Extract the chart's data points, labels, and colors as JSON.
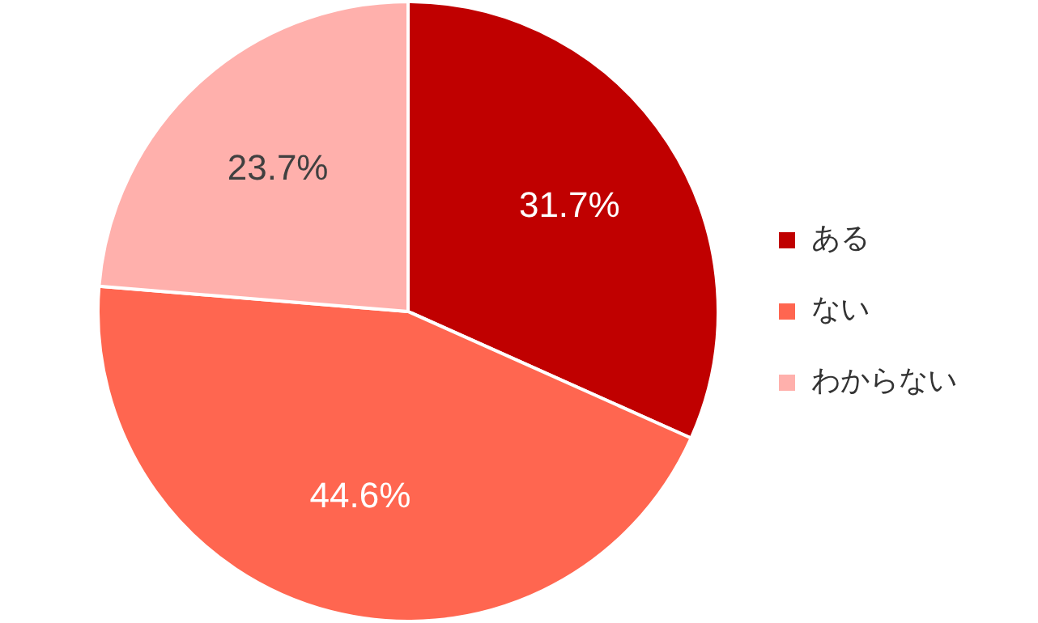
{
  "chart_data": {
    "type": "pie",
    "categories": [
      "ある",
      "ない",
      "わからない"
    ],
    "values": [
      31.7,
      44.6,
      23.7
    ],
    "colors": [
      "#c00000",
      "#ff6650",
      "#ffb0ac"
    ],
    "value_labels": [
      "31.7%",
      "44.6%",
      "23.7%"
    ],
    "legend": "right"
  }
}
